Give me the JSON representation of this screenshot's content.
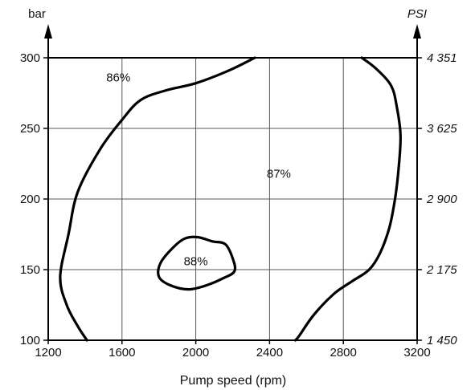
{
  "chart_data": {
    "type": "line",
    "xlabel": "Pump speed (rpm)",
    "ylabel": "bar",
    "ylabel_right": "PSI",
    "xlim": [
      1200,
      3200
    ],
    "ylim": [
      100,
      300
    ],
    "x_ticks": [
      {
        "value": 1200,
        "label": "1200"
      },
      {
        "value": 1600,
        "label": "1600"
      },
      {
        "value": 2000,
        "label": "2000"
      },
      {
        "value": 2400,
        "label": "2400"
      },
      {
        "value": 2800,
        "label": "2800"
      },
      {
        "value": 3200,
        "label": "3200"
      }
    ],
    "y_ticks": [
      {
        "value": 100,
        "label": "100"
      },
      {
        "value": 150,
        "label": "150"
      },
      {
        "value": 200,
        "label": "200"
      },
      {
        "value": 250,
        "label": "250"
      },
      {
        "value": 300,
        "label": "300"
      }
    ],
    "y_ticks_right": [
      {
        "value": 100,
        "label": "1 450"
      },
      {
        "value": 150,
        "label": "2 175"
      },
      {
        "value": 200,
        "label": "2 900"
      },
      {
        "value": 250,
        "label": "3 625"
      },
      {
        "value": 300,
        "label": "4 351"
      }
    ],
    "grid": true,
    "series": [
      {
        "label": "86%",
        "closed": false,
        "points": [
          [
            2320,
            300
          ],
          [
            2180,
            291
          ],
          [
            2000,
            282
          ],
          [
            1840,
            277
          ],
          [
            1700,
            270
          ],
          [
            1600,
            256
          ],
          [
            1480,
            235
          ],
          [
            1360,
            205
          ],
          [
            1310,
            175
          ],
          [
            1265,
            145
          ],
          [
            1300,
            125
          ],
          [
            1360,
            110
          ],
          [
            1410,
            100
          ]
        ]
      },
      {
        "label": "88%",
        "closed": true,
        "points": [
          [
            2010,
            173
          ],
          [
            2090,
            170
          ],
          [
            2160,
            168
          ],
          [
            2200,
            158
          ],
          [
            2210,
            149
          ],
          [
            2150,
            144
          ],
          [
            2060,
            139
          ],
          [
            1960,
            136
          ],
          [
            1860,
            139
          ],
          [
            1800,
            145
          ],
          [
            1810,
            155
          ],
          [
            1880,
            166
          ],
          [
            1940,
            172
          ]
        ]
      },
      {
        "label": "87%",
        "closed": false,
        "points": [
          [
            2900,
            300
          ],
          [
            2980,
            292
          ],
          [
            3060,
            280
          ],
          [
            3090,
            265
          ],
          [
            3110,
            245
          ],
          [
            3100,
            222
          ],
          [
            3080,
            200
          ],
          [
            3050,
            180
          ],
          [
            3000,
            162
          ],
          [
            2940,
            150
          ],
          [
            2850,
            142
          ],
          [
            2750,
            133
          ],
          [
            2640,
            118
          ],
          [
            2560,
            103
          ],
          [
            2540,
            100
          ]
        ]
      }
    ],
    "annotations": [
      {
        "text": "86%",
        "x": 1580,
        "y": 286
      },
      {
        "text": "87%",
        "x": 2450,
        "y": 218
      },
      {
        "text": "88%",
        "x": 2000,
        "y": 156
      }
    ]
  }
}
